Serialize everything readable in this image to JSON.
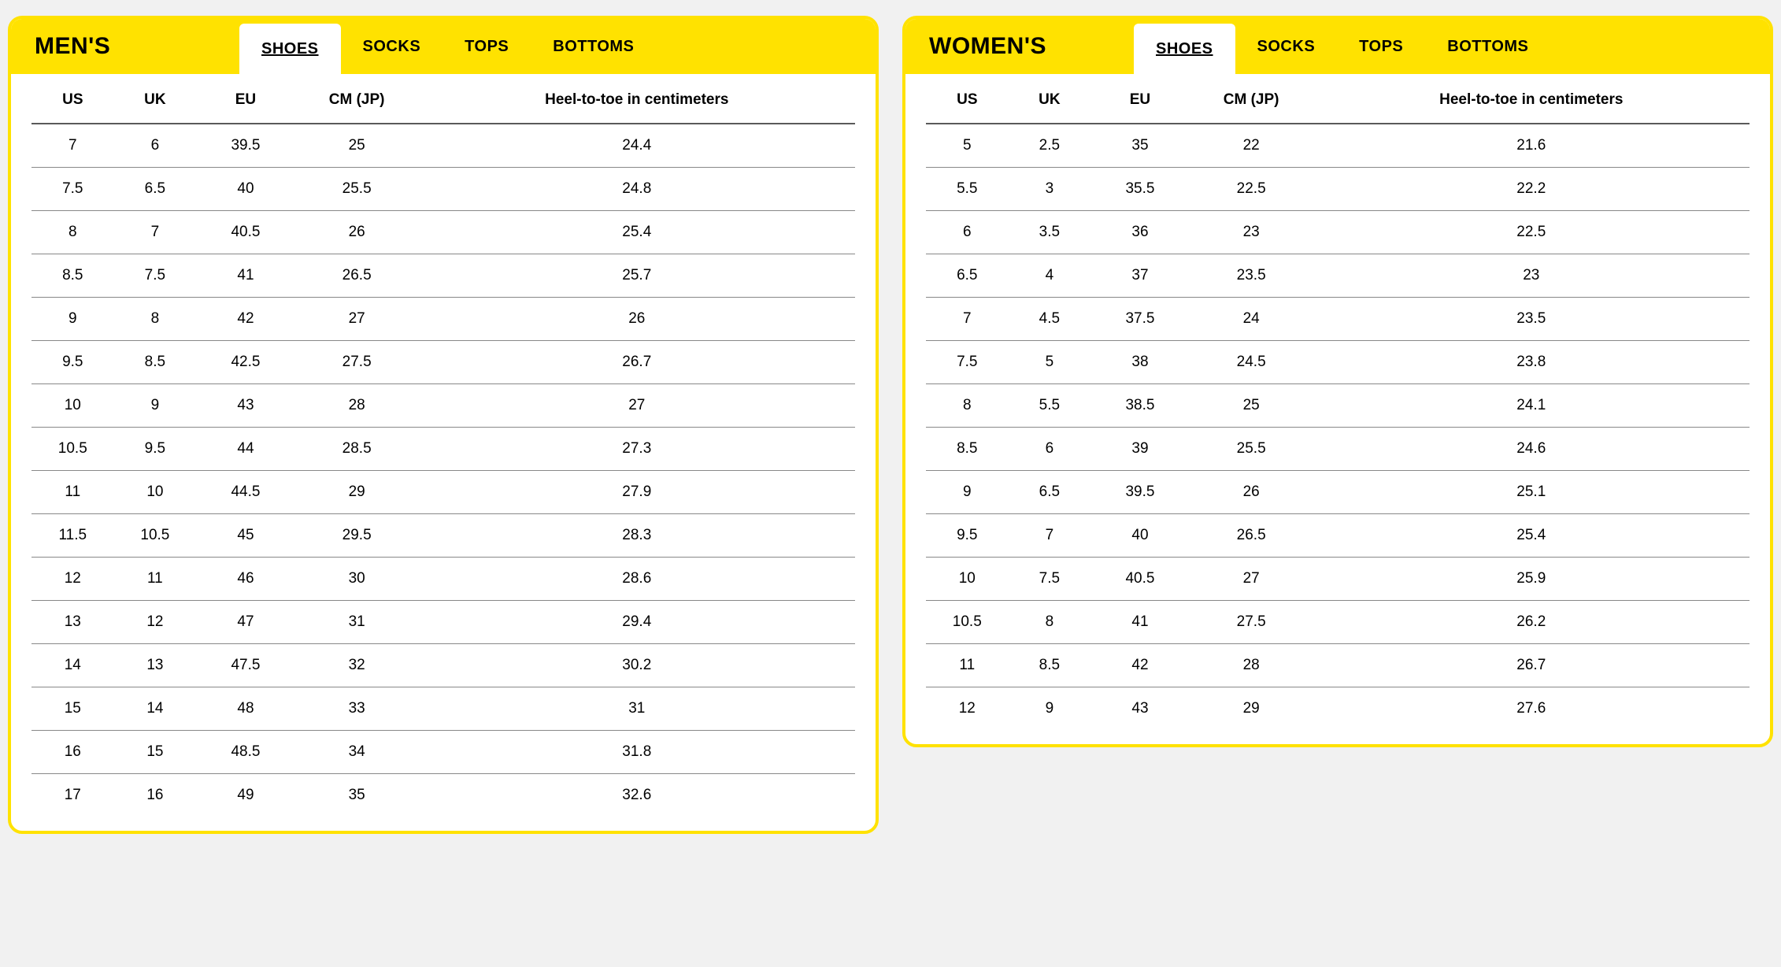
{
  "colors": {
    "accent": "#ffe200",
    "page_bg": "#f1f1f1",
    "panel_bg": "#ffffff",
    "header_divider": "#5a5a5a",
    "row_divider": "#888888",
    "text": "#000000"
  },
  "panels": [
    {
      "title": "MEN'S",
      "tabs": [
        {
          "label": "SHOES",
          "active": true
        },
        {
          "label": "SOCKS",
          "active": false
        },
        {
          "label": "TOPS",
          "active": false
        },
        {
          "label": "BOTTOMS",
          "active": false
        }
      ],
      "columns": [
        "US",
        "UK",
        "EU",
        "CM (JP)",
        "Heel-to-toe in centimeters"
      ],
      "rows": [
        [
          "7",
          "6",
          "39.5",
          "25",
          "24.4"
        ],
        [
          "7.5",
          "6.5",
          "40",
          "25.5",
          "24.8"
        ],
        [
          "8",
          "7",
          "40.5",
          "26",
          "25.4"
        ],
        [
          "8.5",
          "7.5",
          "41",
          "26.5",
          "25.7"
        ],
        [
          "9",
          "8",
          "42",
          "27",
          "26"
        ],
        [
          "9.5",
          "8.5",
          "42.5",
          "27.5",
          "26.7"
        ],
        [
          "10",
          "9",
          "43",
          "28",
          "27"
        ],
        [
          "10.5",
          "9.5",
          "44",
          "28.5",
          "27.3"
        ],
        [
          "11",
          "10",
          "44.5",
          "29",
          "27.9"
        ],
        [
          "11.5",
          "10.5",
          "45",
          "29.5",
          "28.3"
        ],
        [
          "12",
          "11",
          "46",
          "30",
          "28.6"
        ],
        [
          "13",
          "12",
          "47",
          "31",
          "29.4"
        ],
        [
          "14",
          "13",
          "47.5",
          "32",
          "30.2"
        ],
        [
          "15",
          "14",
          "48",
          "33",
          "31"
        ],
        [
          "16",
          "15",
          "48.5",
          "34",
          "31.8"
        ],
        [
          "17",
          "16",
          "49",
          "35",
          "32.6"
        ]
      ]
    },
    {
      "title": "WOMEN'S",
      "tabs": [
        {
          "label": "SHOES",
          "active": true
        },
        {
          "label": "SOCKS",
          "active": false
        },
        {
          "label": "TOPS",
          "active": false
        },
        {
          "label": "BOTTOMS",
          "active": false
        }
      ],
      "columns": [
        "US",
        "UK",
        "EU",
        "CM (JP)",
        "Heel-to-toe in centimeters"
      ],
      "rows": [
        [
          "5",
          "2.5",
          "35",
          "22",
          "21.6"
        ],
        [
          "5.5",
          "3",
          "35.5",
          "22.5",
          "22.2"
        ],
        [
          "6",
          "3.5",
          "36",
          "23",
          "22.5"
        ],
        [
          "6.5",
          "4",
          "37",
          "23.5",
          "23"
        ],
        [
          "7",
          "4.5",
          "37.5",
          "24",
          "23.5"
        ],
        [
          "7.5",
          "5",
          "38",
          "24.5",
          "23.8"
        ],
        [
          "8",
          "5.5",
          "38.5",
          "25",
          "24.1"
        ],
        [
          "8.5",
          "6",
          "39",
          "25.5",
          "24.6"
        ],
        [
          "9",
          "6.5",
          "39.5",
          "26",
          "25.1"
        ],
        [
          "9.5",
          "7",
          "40",
          "26.5",
          "25.4"
        ],
        [
          "10",
          "7.5",
          "40.5",
          "27",
          "25.9"
        ],
        [
          "10.5",
          "8",
          "41",
          "27.5",
          "26.2"
        ],
        [
          "11",
          "8.5",
          "42",
          "28",
          "26.7"
        ],
        [
          "12",
          "9",
          "43",
          "29",
          "27.6"
        ]
      ]
    }
  ]
}
